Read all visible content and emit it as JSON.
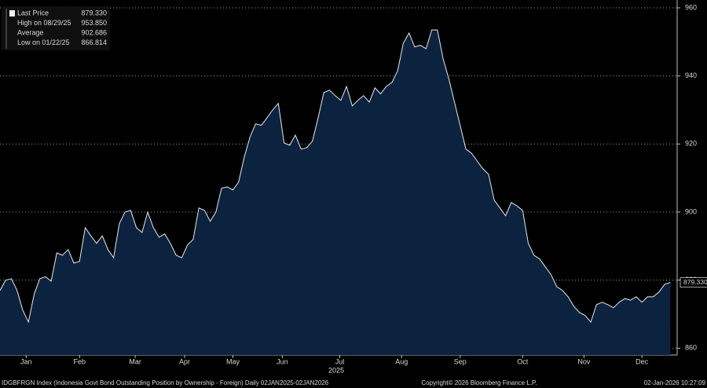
{
  "chart_data": {
    "type": "area",
    "series": [
      {
        "name": "Last Price",
        "color": "#e8e8e8",
        "fill": "#0c2340",
        "values": [
          877,
          880,
          880.4,
          877,
          871.2,
          867.7,
          875.8,
          880.4,
          881,
          879.7,
          888,
          887.3,
          889,
          885,
          885.5,
          895.4,
          893,
          890.8,
          893,
          889,
          886.6,
          896.6,
          900,
          900.5,
          895.4,
          894,
          900,
          895.4,
          892.6,
          893.6,
          890.8,
          887.3,
          886.6,
          890.3,
          892,
          901.2,
          900.5,
          897.3,
          900,
          907,
          907.4,
          906.5,
          908.8,
          916.2,
          922,
          925.9,
          925.5,
          927.7,
          930,
          931.9,
          920.3,
          919.6,
          922.6,
          918.5,
          918.9,
          920.8,
          927.7,
          935.1,
          935.8,
          934.2,
          932.8,
          936.9,
          931.2,
          932.8,
          934.2,
          932.3,
          936.5,
          934.7,
          936.9,
          938.1,
          941.5,
          949.6,
          952.6,
          948.5,
          949,
          948,
          953.5,
          953.5,
          945,
          939.2,
          932.3,
          925.4,
          918.5,
          917.3,
          915,
          912.7,
          911.1,
          903.5,
          901.2,
          898.9,
          902.8,
          901.8,
          900.5,
          890.8,
          887.3,
          886.2,
          883.9,
          881.6,
          878.1,
          877,
          875.1,
          872.3,
          870.5,
          869.6,
          867.7,
          872.8,
          873.5,
          872.8,
          871.9,
          873.5,
          874.6,
          874.1,
          875.1,
          873.5,
          875.1,
          875.1,
          876.5,
          878.8,
          879.33
        ]
      }
    ],
    "xlim": [
      0,
      119.2
    ],
    "xticks": [
      {
        "value": 4.6,
        "label": "Jan"
      },
      {
        "value": 14,
        "label": "Feb"
      },
      {
        "value": 23.8,
        "label": "Mar"
      },
      {
        "value": 32.5,
        "label": "Apr"
      },
      {
        "value": 41,
        "label": "May"
      },
      {
        "value": 49.7,
        "label": "Jun"
      },
      {
        "value": 59.8,
        "label": "Jul"
      },
      {
        "value": 70.7,
        "label": "Aug"
      },
      {
        "value": 81,
        "label": "Sep"
      },
      {
        "value": 92,
        "label": "Oct"
      },
      {
        "value": 102.8,
        "label": "Nov"
      },
      {
        "value": 113,
        "label": "Dec"
      }
    ],
    "year_label": "2025",
    "ylim": [
      858,
      962.3
    ],
    "yticks": [
      860,
      880,
      900,
      920,
      940,
      960
    ],
    "grid": true,
    "legend": [
      {
        "name": "Last Price",
        "value": 879.33,
        "label": "879.330"
      },
      {
        "name": "High on 08/29/25",
        "value": 953.85,
        "label": "953.850"
      },
      {
        "name": "Average",
        "value": 902.686,
        "label": "902.686"
      },
      {
        "name": "Low on 01/22/25",
        "value": 866.814,
        "label": "866.814"
      }
    ],
    "footer_left": "IDGBFRGN Index (Indonesia Govt Bond Outstanding Position by Ownership - Foreign) Daily 02JAN2025-02JAN2026",
    "footer_center": "Copyright© 2026 Bloomberg Finance L.P.",
    "footer_right": "02-Jan-2026 10:27:09"
  }
}
